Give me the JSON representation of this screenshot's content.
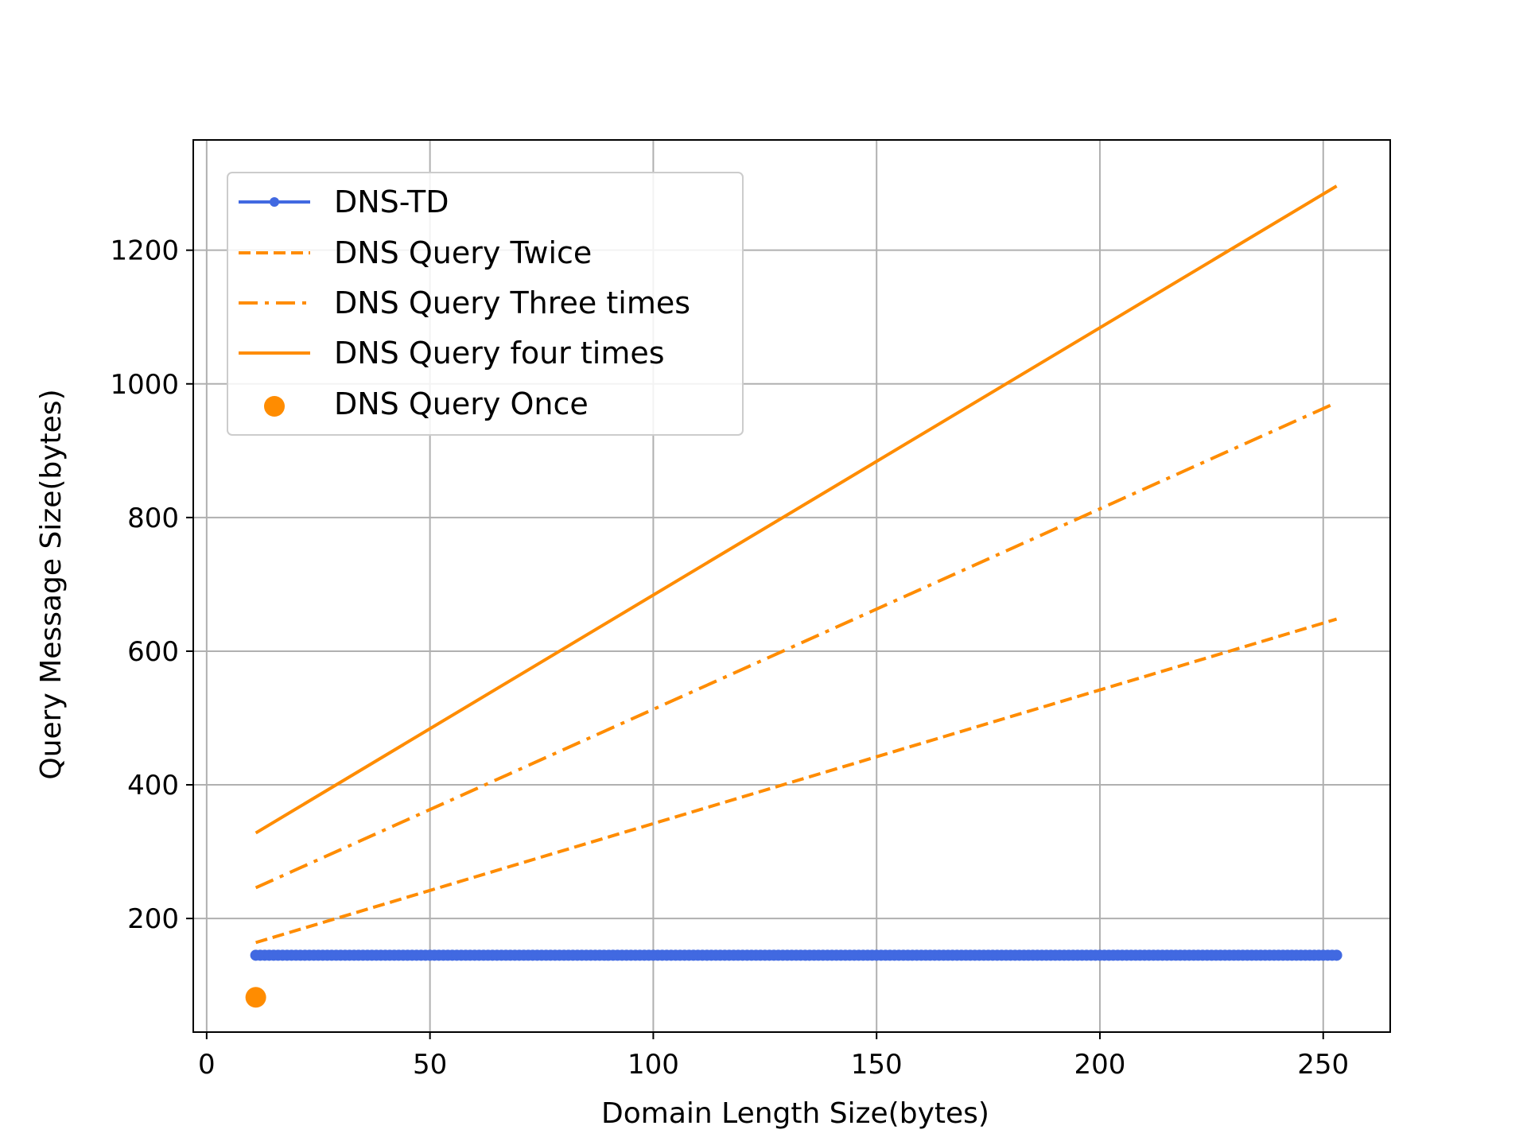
{
  "chart_data": {
    "type": "line",
    "title": "",
    "xlabel": "Domain Length Size(bytes)",
    "ylabel": "Query Message Size(bytes)",
    "xlim": [
      -3,
      265
    ],
    "ylim": [
      30,
      1365
    ],
    "xticks": [
      0,
      50,
      100,
      150,
      200,
      250
    ],
    "yticks": [
      200,
      400,
      600,
      800,
      1000,
      1200
    ],
    "grid": true,
    "legend_position": "top-left",
    "series": [
      {
        "name": "DNS-TD",
        "style": "solid-markers",
        "color": "#4169E1",
        "x_start": 11,
        "x_end": 253,
        "x_step": 1,
        "y_constant": 145
      },
      {
        "name": "DNS Query Twice",
        "style": "dashed",
        "color": "#FF8C00",
        "x": [
          11,
          253
        ],
        "y": [
          164,
          648
        ]
      },
      {
        "name": "DNS Query Three times",
        "style": "dashdot",
        "color": "#FF8C00",
        "x": [
          11,
          253
        ],
        "y": [
          246,
          972
        ]
      },
      {
        "name": "DNS Query four times",
        "style": "solid",
        "color": "#FF8C00",
        "x": [
          11,
          253
        ],
        "y": [
          328,
          1296
        ]
      },
      {
        "name": "DNS Query Once",
        "style": "scatter",
        "color": "#FF8C00",
        "x": [
          11
        ],
        "y": [
          82
        ]
      }
    ]
  }
}
